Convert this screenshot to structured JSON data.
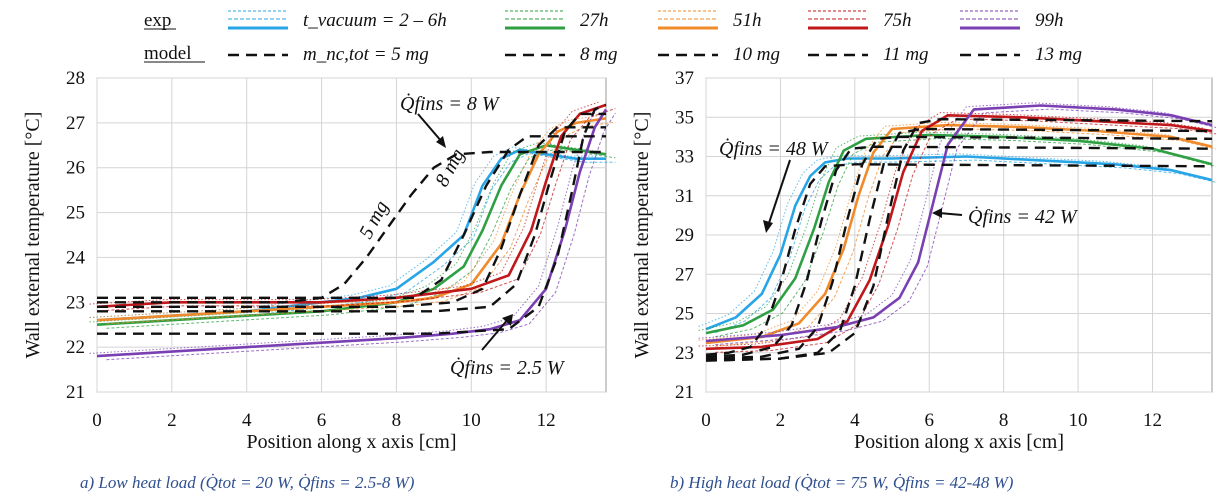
{
  "legend": {
    "exp_label": "exp",
    "model_label": "model",
    "exp_entries": [
      "t_vacuum = 2 – 6h",
      "27h",
      "51h",
      "75h",
      "99h"
    ],
    "model_entries": [
      "m_nc,tot = 5 mg",
      "8 mg",
      "10 mg",
      "11 mg",
      "13 mg"
    ],
    "colors": [
      "#28a5e6",
      "#2ea043",
      "#f08a2a",
      "#c0171a",
      "#7a3fb3"
    ]
  },
  "chart_data": [
    {
      "type": "line",
      "panel": "a",
      "caption": "a) Low heat load (Q̇tot = 20 W, Q̇fins = 2.5-8 W)",
      "xlabel": "Position along x axis [cm]",
      "ylabel": "Wall external temperature [°C]",
      "xlim": [
        0,
        13.6
      ],
      "ylim": [
        21,
        28
      ],
      "xticks": [
        "0",
        "2",
        "4",
        "6",
        "8",
        "10",
        "12"
      ],
      "yticks": [
        "21",
        "22",
        "23",
        "24",
        "25",
        "26",
        "27",
        "28"
      ],
      "grid": true,
      "annotations": [
        "Q̇fins = 8 W",
        "Q̇fins = 2.5 W",
        "5 mg",
        "8 mg"
      ],
      "series": [
        {
          "name": "t_vacuum = 2 – 6h",
          "kind": "exp",
          "x": [
            0,
            2,
            4,
            6,
            7,
            8,
            9,
            9.8,
            10.3,
            10.8,
            11.3,
            12,
            12.8,
            13.6
          ],
          "y": [
            22.6,
            22.7,
            22.8,
            23.0,
            23.1,
            23.3,
            23.9,
            24.5,
            25.6,
            26.2,
            26.4,
            26.3,
            26.2,
            26.2
          ]
        },
        {
          "name": "27h",
          "kind": "exp",
          "x": [
            0,
            2,
            4,
            6,
            8,
            9,
            9.8,
            10.3,
            10.8,
            11.3,
            12,
            12.8,
            13.6
          ],
          "y": [
            22.5,
            22.6,
            22.7,
            22.8,
            23.0,
            23.3,
            23.8,
            24.6,
            25.6,
            26.3,
            26.5,
            26.4,
            26.3
          ]
        },
        {
          "name": "51h",
          "kind": "exp",
          "x": [
            0,
            2,
            4,
            6,
            8,
            9,
            10,
            10.8,
            11.3,
            11.8,
            12.3,
            12.8,
            13.6
          ],
          "y": [
            22.6,
            22.7,
            22.8,
            22.9,
            23.0,
            23.1,
            23.4,
            24.3,
            25.4,
            26.3,
            26.8,
            27.0,
            27.1
          ]
        },
        {
          "name": "75h",
          "kind": "exp",
          "x": [
            0,
            2,
            4,
            6,
            8,
            9,
            10,
            11,
            11.6,
            12,
            12.4,
            12.9,
            13.6
          ],
          "y": [
            22.9,
            23.0,
            23.0,
            23.0,
            23.1,
            23.2,
            23.3,
            23.6,
            24.6,
            25.7,
            26.7,
            27.2,
            27.4
          ]
        },
        {
          "name": "99h",
          "kind": "exp",
          "x": [
            0,
            2,
            4,
            6,
            8,
            9.5,
            10.5,
            11.3,
            12,
            12.5,
            12.9,
            13.3,
            13.6
          ],
          "y": [
            21.8,
            21.9,
            22.0,
            22.1,
            22.2,
            22.3,
            22.4,
            22.6,
            23.3,
            24.6,
            25.9,
            26.9,
            27.3
          ]
        },
        {
          "name": "m_nc,tot = 5 mg",
          "kind": "model",
          "x": [
            0,
            3,
            5,
            6,
            6.6,
            7.2,
            7.8,
            8.4,
            9.0,
            9.6,
            10.5,
            13.6
          ],
          "y": [
            23.0,
            23.0,
            23.0,
            23.1,
            23.4,
            24.0,
            24.7,
            25.4,
            26.0,
            26.3,
            26.35,
            26.35
          ]
        },
        {
          "name": "8 mg",
          "kind": "model",
          "x": [
            0,
            4,
            7,
            8.5,
            9.2,
            9.8,
            10.4,
            11.0,
            11.5,
            13.6
          ],
          "y": [
            23.1,
            23.1,
            23.1,
            23.1,
            23.5,
            24.5,
            25.6,
            26.4,
            26.7,
            26.7
          ]
        },
        {
          "name": "10 mg",
          "kind": "model",
          "x": [
            0,
            5,
            8,
            9.5,
            10.3,
            10.8,
            11.3,
            11.8,
            12.3,
            13.6
          ],
          "y": [
            22.9,
            22.9,
            22.9,
            23.0,
            23.3,
            24.2,
            25.4,
            26.5,
            26.9,
            26.9
          ]
        },
        {
          "name": "11 mg",
          "kind": "model",
          "x": [
            0,
            5,
            9,
            10.5,
            11.2,
            11.7,
            12.1,
            12.5,
            12.9,
            13.6
          ],
          "y": [
            22.8,
            22.8,
            22.8,
            22.9,
            23.4,
            24.5,
            25.7,
            26.8,
            27.2,
            27.2
          ]
        },
        {
          "name": "13 mg",
          "kind": "model",
          "x": [
            0,
            5,
            9,
            11,
            11.8,
            12.3,
            12.7,
            13.0,
            13.3,
            13.6
          ],
          "y": [
            22.3,
            22.3,
            22.3,
            22.4,
            22.9,
            24.0,
            25.5,
            26.7,
            27.3,
            27.4
          ]
        }
      ]
    },
    {
      "type": "line",
      "panel": "b",
      "caption": "b) High heat load (Q̇tot = 75 W, Q̇fins = 42-48 W)",
      "xlabel": "Position along x axis [cm]",
      "ylabel": "Wall external temperature [°C]",
      "xlim": [
        0,
        13.6
      ],
      "ylim": [
        21,
        37
      ],
      "xticks": [
        "0",
        "2",
        "4",
        "6",
        "8",
        "10",
        "12"
      ],
      "yticks": [
        "21",
        "23",
        "25",
        "27",
        "29",
        "31",
        "33",
        "35",
        "37"
      ],
      "grid": true,
      "annotations": [
        "Q̇fins = 48 W",
        "Q̇fins = 42 W"
      ],
      "series": [
        {
          "name": "t_vacuum = 2 – 6h",
          "kind": "exp",
          "x": [
            0,
            0.8,
            1.5,
            2.0,
            2.4,
            2.8,
            3.2,
            3.8,
            5,
            7,
            9,
            11,
            12.5,
            13.6
          ],
          "y": [
            24.2,
            24.8,
            26.0,
            28.0,
            30.5,
            32.0,
            32.7,
            32.9,
            32.9,
            33.0,
            32.8,
            32.6,
            32.3,
            31.8
          ]
        },
        {
          "name": "27h",
          "kind": "exp",
          "x": [
            0,
            1,
            1.8,
            2.4,
            2.9,
            3.3,
            3.7,
            4.3,
            6,
            8,
            10,
            12,
            13.6
          ],
          "y": [
            24.0,
            24.4,
            25.2,
            26.8,
            29.3,
            31.7,
            33.3,
            33.9,
            34.1,
            34.0,
            33.8,
            33.4,
            32.6
          ]
        },
        {
          "name": "51h",
          "kind": "exp",
          "x": [
            0,
            1.5,
            2.5,
            3.2,
            3.7,
            4.1,
            4.5,
            5.0,
            6.5,
            8.5,
            10.5,
            12.5,
            13.6
          ],
          "y": [
            23.5,
            23.8,
            24.5,
            26.0,
            28.3,
            31.0,
            33.2,
            34.4,
            34.6,
            34.5,
            34.3,
            34.0,
            33.5
          ]
        },
        {
          "name": "75h",
          "kind": "exp",
          "x": [
            0,
            1.5,
            3,
            3.8,
            4.4,
            4.9,
            5.3,
            5.8,
            6.5,
            8.5,
            10.5,
            12.5,
            13.6
          ],
          "y": [
            23.2,
            23.3,
            23.7,
            24.6,
            26.7,
            29.5,
            32.2,
            34.3,
            35.1,
            35.0,
            34.8,
            34.6,
            34.3
          ]
        },
        {
          "name": "99h",
          "kind": "exp",
          "x": [
            0,
            2,
            3.5,
            4.5,
            5.2,
            5.7,
            6.1,
            6.5,
            7.2,
            9,
            11,
            12.5,
            13.6
          ],
          "y": [
            23.6,
            23.9,
            24.3,
            24.8,
            25.8,
            27.6,
            30.6,
            33.6,
            35.4,
            35.6,
            35.4,
            35.1,
            34.6
          ]
        },
        {
          "name": "m_nc,tot = 5 mg",
          "kind": "model",
          "x": [
            0,
            0.6,
            1.2,
            1.6,
            2.0,
            2.4,
            2.8,
            3.2,
            4,
            13.6
          ],
          "y": [
            22.9,
            23.0,
            23.3,
            24.3,
            26.5,
            29.3,
            31.6,
            32.5,
            32.6,
            32.5
          ]
        },
        {
          "name": "8 mg",
          "kind": "model",
          "x": [
            0,
            1,
            1.8,
            2.3,
            2.7,
            3.1,
            3.5,
            3.9,
            4.5,
            13.6
          ],
          "y": [
            22.8,
            22.9,
            23.3,
            24.4,
            26.6,
            29.7,
            32.3,
            33.4,
            33.5,
            33.4
          ]
        },
        {
          "name": "10 mg",
          "kind": "model",
          "x": [
            0,
            1.5,
            2.5,
            3.0,
            3.4,
            3.8,
            4.2,
            4.6,
            5.2,
            13.6
          ],
          "y": [
            22.7,
            22.8,
            23.2,
            24.3,
            26.6,
            29.8,
            32.6,
            33.9,
            34.0,
            33.9
          ]
        },
        {
          "name": "11 mg",
          "kind": "model",
          "x": [
            0,
            2,
            3,
            3.6,
            4.0,
            4.4,
            4.8,
            5.2,
            5.8,
            13.6
          ],
          "y": [
            22.6,
            22.7,
            23.0,
            24.1,
            26.4,
            29.8,
            32.8,
            34.2,
            34.4,
            34.3
          ]
        },
        {
          "name": "13 mg",
          "kind": "model",
          "x": [
            0,
            2,
            3.3,
            4.0,
            4.5,
            4.9,
            5.3,
            5.7,
            6.3,
            13.6
          ],
          "y": [
            22.6,
            22.7,
            23.0,
            24.0,
            26.4,
            30.0,
            33.3,
            34.7,
            34.9,
            34.8
          ]
        }
      ]
    }
  ]
}
